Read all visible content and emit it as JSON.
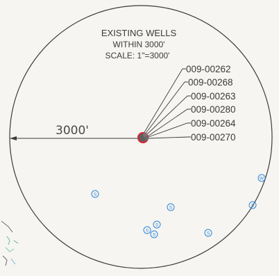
{
  "title_lines": [
    "EXISTING WELLS",
    "WITHIN 3000'",
    "SCALE: 1\"=3000'"
  ],
  "radius_label": "3000'",
  "well_ids": [
    "009-00262",
    "009-00268",
    "009-00263",
    "009-00280",
    "009-00264",
    "009-00270"
  ],
  "markers": [
    {
      "letter": "S"
    },
    {
      "letter": "S"
    },
    {
      "letter": "S"
    },
    {
      "letter": "S"
    },
    {
      "letter": "S"
    },
    {
      "letter": "S"
    },
    {
      "letter": "S"
    },
    {
      "letter": "W"
    },
    {
      "letter": "S"
    }
  ],
  "colors": {
    "circle": "#3a3a3a",
    "center_marker": "#d62c3a",
    "center_fill": "#5f5f5f",
    "well_marker": "#2f86d6"
  }
}
